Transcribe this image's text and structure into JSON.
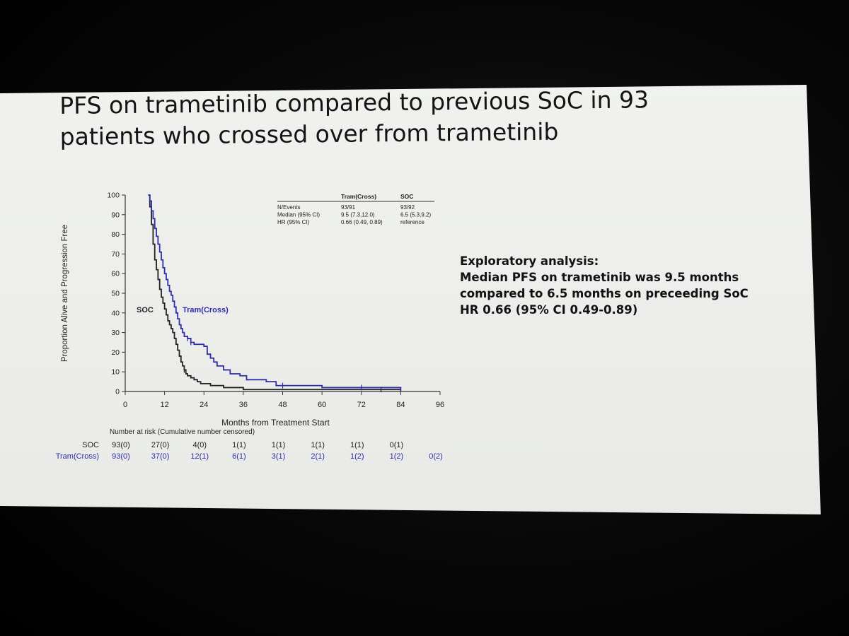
{
  "slide": {
    "title_line1": "PFS on trametinib compared to previous SoC in 93",
    "title_line2": "patients who crossed over from trametinib",
    "note_heading": "Exploratory analysis:",
    "note_lines": [
      "Median PFS on trametinib was 9.5 months",
      "compared to 6.5 months on preceeding SoC",
      "HR 0.66 (95% CI 0.49-0.89)"
    ]
  },
  "chart_data": {
    "type": "line",
    "subtype": "kaplan-meier",
    "title": "",
    "xlabel": "Months from Treatment Start",
    "ylabel": "Proportion Alive and Progression Free",
    "xlim": [
      0,
      96
    ],
    "ylim": [
      0,
      100
    ],
    "x_ticks": [
      0,
      12,
      24,
      36,
      48,
      60,
      72,
      84,
      96
    ],
    "y_ticks": [
      0,
      10,
      20,
      30,
      40,
      50,
      60,
      70,
      80,
      90,
      100
    ],
    "grid": false,
    "series": [
      {
        "name": "SOC",
        "color": "#222222",
        "points": [
          [
            7,
            100
          ],
          [
            7.5,
            94
          ],
          [
            8,
            85
          ],
          [
            8.5,
            75
          ],
          [
            9,
            67
          ],
          [
            9.5,
            62
          ],
          [
            10,
            57
          ],
          [
            10.5,
            52
          ],
          [
            11,
            48
          ],
          [
            11.5,
            45
          ],
          [
            12,
            42
          ],
          [
            12.5,
            39
          ],
          [
            13,
            36
          ],
          [
            13.5,
            34
          ],
          [
            14,
            32
          ],
          [
            14.5,
            30
          ],
          [
            15,
            27
          ],
          [
            15.5,
            24
          ],
          [
            16,
            21
          ],
          [
            16.5,
            18
          ],
          [
            17,
            15
          ],
          [
            17.5,
            13
          ],
          [
            18,
            11
          ],
          [
            18.5,
            9
          ],
          [
            19,
            8
          ],
          [
            20,
            7
          ],
          [
            21,
            6
          ],
          [
            22,
            5
          ],
          [
            23,
            4
          ],
          [
            26,
            3
          ],
          [
            30,
            2
          ],
          [
            36,
            1
          ],
          [
            60,
            1
          ],
          [
            78,
            1
          ],
          [
            84,
            1
          ]
        ],
        "censor_points": [
          [
            18,
            11
          ],
          [
            78,
            1
          ]
        ]
      },
      {
        "name": "Tram(Cross)",
        "color": "#2e2ea6",
        "points": [
          [
            7,
            100
          ],
          [
            7.5,
            97
          ],
          [
            8,
            92
          ],
          [
            8.5,
            88
          ],
          [
            9,
            83
          ],
          [
            9.5,
            79
          ],
          [
            10,
            75
          ],
          [
            10.5,
            71
          ],
          [
            11,
            67
          ],
          [
            11.5,
            63
          ],
          [
            12,
            60
          ],
          [
            12.5,
            57
          ],
          [
            13,
            54
          ],
          [
            13.5,
            51
          ],
          [
            14,
            49
          ],
          [
            14.5,
            46
          ],
          [
            15,
            43
          ],
          [
            15.5,
            40
          ],
          [
            16,
            37
          ],
          [
            16.5,
            34
          ],
          [
            17,
            32
          ],
          [
            17.5,
            30
          ],
          [
            18,
            28
          ],
          [
            19,
            27
          ],
          [
            20,
            25
          ],
          [
            21,
            24
          ],
          [
            24,
            23
          ],
          [
            25,
            19
          ],
          [
            26,
            17
          ],
          [
            27,
            15
          ],
          [
            28,
            13
          ],
          [
            30,
            11
          ],
          [
            32,
            9
          ],
          [
            35,
            8
          ],
          [
            37,
            6
          ],
          [
            43,
            5
          ],
          [
            46,
            3
          ],
          [
            60,
            2
          ],
          [
            84,
            2
          ],
          [
            84,
            0
          ]
        ],
        "censor_points": [
          [
            19,
            27
          ],
          [
            20,
            25
          ],
          [
            48,
            3
          ],
          [
            72,
            2
          ]
        ]
      }
    ],
    "series_labels": [
      "SOC",
      "Tram(Cross)"
    ],
    "stats_table": {
      "columns": [
        "",
        "Tram(Cross)",
        "SOC"
      ],
      "rows": [
        [
          "N/Events",
          "93/91",
          "93/92"
        ],
        [
          "Median (95% CI)",
          "9.5 (7.3,12.0)",
          "6.5 (5.3,9.2)"
        ],
        [
          "HR (95% CI)",
          "0.66 (0.49, 0.89)",
          "reference"
        ]
      ]
    },
    "risk_table": {
      "title": "Number at risk (Cumulative number censored)",
      "times": [
        0,
        12,
        24,
        36,
        48,
        60,
        72,
        84,
        96
      ],
      "rows": [
        {
          "name": "SOC",
          "values": [
            "93(0)",
            "27(0)",
            "4(0)",
            "1(1)",
            "1(1)",
            "1(1)",
            "1(1)",
            "0(1)"
          ]
        },
        {
          "name": "Tram(Cross)",
          "values": [
            "93(0)",
            "37(0)",
            "12(1)",
            "6(1)",
            "3(1)",
            "2(1)",
            "1(2)",
            "1(2)",
            "0(2)"
          ]
        }
      ]
    }
  }
}
